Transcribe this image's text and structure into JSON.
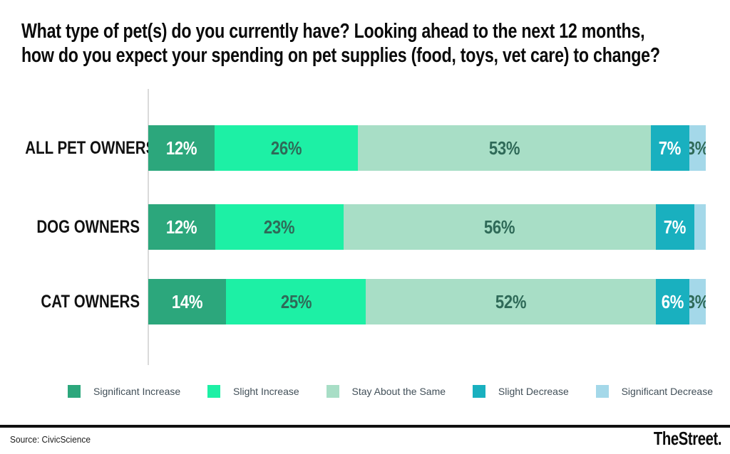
{
  "title": {
    "line1": "What type of pet(s) do you currently have? Looking ahead to the next 12 months,",
    "line2": "how do you expect your spending on pet supplies (food, toys, vet care) to change?"
  },
  "chart_data": {
    "type": "bar",
    "variant": "horizontal-stacked",
    "categories": [
      "ALL PET OWNERS",
      "DOG OWNERS",
      "CAT OWNERS"
    ],
    "series": [
      {
        "name": "Significant Increase",
        "color": "#2ca77c",
        "values": [
          12,
          12,
          14
        ]
      },
      {
        "name": "Slight Increase",
        "color": "#1df0a5",
        "values": [
          26,
          23,
          25
        ]
      },
      {
        "name": "Stay About the Same",
        "color": "#a8dec6",
        "values": [
          53,
          56,
          52
        ]
      },
      {
        "name": "Slight Decrease",
        "color": "#19b0bf",
        "values": [
          7,
          7,
          6
        ]
      },
      {
        "name": "Significant Decrease",
        "color": "#a4d8e9",
        "values": [
          3,
          2,
          3
        ]
      }
    ],
    "data_labels": [
      [
        "12%",
        "26%",
        "53%",
        "7%",
        "3%"
      ],
      [
        "12%",
        "23%",
        "56%",
        "7%",
        ""
      ],
      [
        "14%",
        "25%",
        "52%",
        "6%",
        "3%"
      ]
    ],
    "white_label_series": [
      0,
      3
    ],
    "label_text_colors": {
      "on_dark": "#ffffff",
      "on_light": "#2f6a58"
    },
    "legend_position": "bottom",
    "axis_line_color": "#dadada",
    "xlim": [
      0,
      100
    ],
    "grid": false
  },
  "footer": {
    "source": "Source: CivicScience",
    "brand": "TheStreet."
  }
}
